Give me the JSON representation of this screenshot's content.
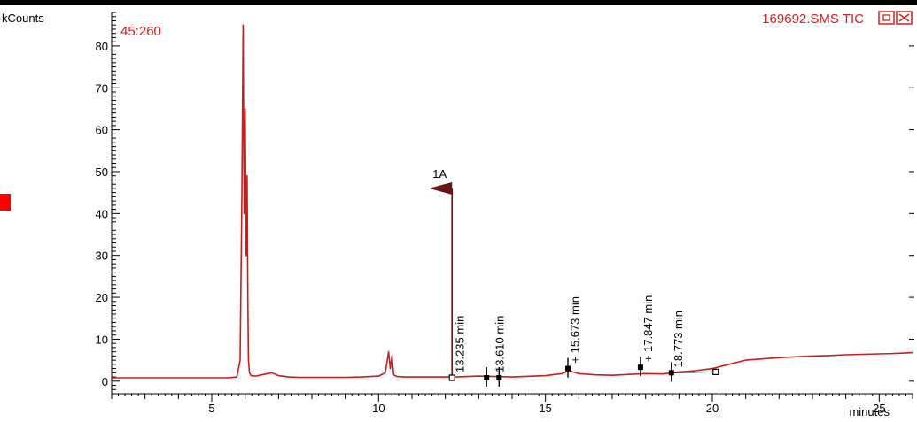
{
  "chart_data": {
    "type": "line",
    "title": "",
    "ylabel": "kCounts",
    "xlabel": "minutes",
    "ion_label": "45:260",
    "file_label": "169692.SMS TIC",
    "xlim": [
      2.0,
      26.0
    ],
    "ylim": [
      -3.0,
      88.0
    ],
    "x_ticks": [
      5,
      10,
      15,
      20,
      25
    ],
    "y_ticks": [
      0,
      10,
      20,
      30,
      40,
      50,
      60,
      70,
      80
    ],
    "trace_color": "#c81e1e",
    "series": [
      {
        "x": [
          2.0,
          3.0,
          4.0,
          5.0,
          5.5,
          5.75,
          5.85,
          5.9,
          5.94,
          5.97,
          6.0,
          6.03,
          6.06,
          6.08,
          6.1,
          6.13,
          6.18,
          6.3,
          6.5,
          6.8,
          7.0,
          7.3,
          7.6,
          8.0,
          8.5,
          9.0,
          9.5,
          10.0,
          10.2,
          10.3,
          10.35,
          10.4,
          10.45,
          10.55,
          10.8,
          11.5,
          12.3,
          13.0,
          14.0,
          15.0,
          15.5,
          15.7,
          16.0,
          16.5,
          17.0,
          17.5,
          18.0,
          18.5,
          19.0,
          19.5,
          20.0,
          20.5,
          21.0,
          21.5,
          22.0,
          22.5,
          23.0,
          23.5,
          24.0,
          24.5,
          25.0,
          25.5,
          26.0
        ],
        "y": [
          0.8,
          0.8,
          0.8,
          0.8,
          0.8,
          1.0,
          5.0,
          42.0,
          85.0,
          40.0,
          65.0,
          30.0,
          49.0,
          20.0,
          5.0,
          2.0,
          1.3,
          1.2,
          1.5,
          2.0,
          1.3,
          1.0,
          0.9,
          0.9,
          0.9,
          0.9,
          1.0,
          1.2,
          2.0,
          7.0,
          3.0,
          6.0,
          1.5,
          1.1,
          1.0,
          1.0,
          1.0,
          1.2,
          1.0,
          1.3,
          1.8,
          2.5,
          1.8,
          1.5,
          1.4,
          1.6,
          1.8,
          1.7,
          2.2,
          2.5,
          3.0,
          4.0,
          5.0,
          5.3,
          5.6,
          5.8,
          6.0,
          6.1,
          6.3,
          6.4,
          6.5,
          6.6,
          6.8
        ]
      }
    ],
    "flag": {
      "label": "1A",
      "x": 12.2,
      "y_top": 46.0
    },
    "markers": [
      {
        "x": 12.2,
        "y": 0.8,
        "label": "13.235 min",
        "label_x": 12.55,
        "shape": "open-square",
        "tick": false
      },
      {
        "x": 13.235,
        "y": 0.8,
        "label": "",
        "shape": "filled-square",
        "tick": true
      },
      {
        "x": 13.61,
        "y": 0.8,
        "label": "13.610 min",
        "label_x": 13.75,
        "shape": "filled-square",
        "tick": true
      },
      {
        "x": 15.673,
        "y": 3.0,
        "label": "+ 15.673 min",
        "label_x": 16.0,
        "shape": "filled-square",
        "tick": true
      },
      {
        "x": 17.847,
        "y": 3.3,
        "label": "+ 17.847 min",
        "label_x": 18.2,
        "shape": "filled-square",
        "tick": true
      },
      {
        "x": 18.773,
        "y": 2.0,
        "label": "18.773 min",
        "label_x": 19.1,
        "shape": "filled-square",
        "tick": true
      },
      {
        "x": 20.1,
        "y": 2.2,
        "label": "",
        "shape": "open-square",
        "tick": false
      }
    ]
  }
}
